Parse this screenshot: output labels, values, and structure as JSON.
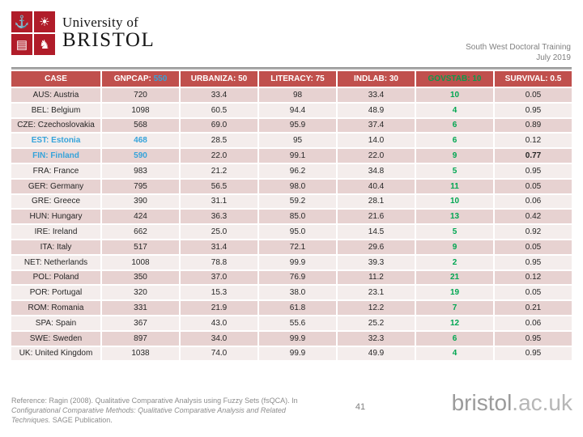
{
  "logo": {
    "line1": "University of",
    "line2": "BRISTOL",
    "crest_glyphs": {
      "ship": "⚓",
      "sun": "☀",
      "book": "▤",
      "horse": "♞"
    }
  },
  "header_right": {
    "line1": "South West Doctoral Training",
    "line2": "July 2019"
  },
  "table": {
    "columns": [
      {
        "key": "case",
        "label": "CASE"
      },
      {
        "key": "gnpcap",
        "label": "GNPCAP:",
        "threshold": "550"
      },
      {
        "key": "urbaniza",
        "label": "URBANIZA: 50"
      },
      {
        "key": "literacy",
        "label": "LITERACY: 75"
      },
      {
        "key": "indlab",
        "label": "INDLAB: 30"
      },
      {
        "key": "govstab",
        "label": "GOVSTAB: 10",
        "header_color": "green"
      },
      {
        "key": "survival",
        "label": "SURVIVAL: 0.5"
      }
    ],
    "rows": [
      {
        "case": "AUS: Austria",
        "gnpcap": "720",
        "urbaniza": "33.4",
        "literacy": "98",
        "indlab": "33.4",
        "govstab": "10",
        "survival": "0.05"
      },
      {
        "case": "BEL: Belgium",
        "gnpcap": "1098",
        "urbaniza": "60.5",
        "literacy": "94.4",
        "indlab": "48.9",
        "govstab": "4",
        "survival": "0.95"
      },
      {
        "case": "CZE: Czechoslovakia",
        "gnpcap": "568",
        "urbaniza": "69.0",
        "literacy": "95.9",
        "indlab": "37.4",
        "govstab": "6",
        "survival": "0.89"
      },
      {
        "case": "EST: Estonia",
        "gnpcap": "468",
        "urbaniza": "28.5",
        "literacy": "95",
        "indlab": "14.0",
        "govstab": "6",
        "survival": "0.12",
        "highlight": true
      },
      {
        "case": "FIN: Finland",
        "gnpcap": "590",
        "urbaniza": "22.0",
        "literacy": "99.1",
        "indlab": "22.0",
        "govstab": "9",
        "survival": "0.77",
        "highlight": true,
        "bold_survival": true
      },
      {
        "case": "FRA: France",
        "gnpcap": "983",
        "urbaniza": "21.2",
        "literacy": "96.2",
        "indlab": "34.8",
        "govstab": "5",
        "survival": "0.95"
      },
      {
        "case": "GER: Germany",
        "gnpcap": "795",
        "urbaniza": "56.5",
        "literacy": "98.0",
        "indlab": "40.4",
        "govstab": "11",
        "survival": "0.05"
      },
      {
        "case": "GRE: Greece",
        "gnpcap": "390",
        "urbaniza": "31.1",
        "literacy": "59.2",
        "indlab": "28.1",
        "govstab": "10",
        "survival": "0.06"
      },
      {
        "case": "HUN: Hungary",
        "gnpcap": "424",
        "urbaniza": "36.3",
        "literacy": "85.0",
        "indlab": "21.6",
        "govstab": "13",
        "survival": "0.42"
      },
      {
        "case": "IRE: Ireland",
        "gnpcap": "662",
        "urbaniza": "25.0",
        "literacy": "95.0",
        "indlab": "14.5",
        "govstab": "5",
        "survival": "0.92"
      },
      {
        "case": "ITA: Italy",
        "gnpcap": "517",
        "urbaniza": "31.4",
        "literacy": "72.1",
        "indlab": "29.6",
        "govstab": "9",
        "survival": "0.05"
      },
      {
        "case": "NET: Netherlands",
        "gnpcap": "1008",
        "urbaniza": "78.8",
        "literacy": "99.9",
        "indlab": "39.3",
        "govstab": "2",
        "survival": "0.95"
      },
      {
        "case": "POL: Poland",
        "gnpcap": "350",
        "urbaniza": "37.0",
        "literacy": "76.9",
        "indlab": "11.2",
        "govstab": "21",
        "survival": "0.12"
      },
      {
        "case": "POR: Portugal",
        "gnpcap": "320",
        "urbaniza": "15.3",
        "literacy": "38.0",
        "indlab": "23.1",
        "govstab": "19",
        "survival": "0.05"
      },
      {
        "case": "ROM: Romania",
        "gnpcap": "331",
        "urbaniza": "21.9",
        "literacy": "61.8",
        "indlab": "12.2",
        "govstab": "7",
        "survival": "0.21"
      },
      {
        "case": "SPA: Spain",
        "gnpcap": "367",
        "urbaniza": "43.0",
        "literacy": "55.6",
        "indlab": "25.2",
        "govstab": "12",
        "survival": "0.06"
      },
      {
        "case": "SWE: Sweden",
        "gnpcap": "897",
        "urbaniza": "34.0",
        "literacy": "99.9",
        "indlab": "32.3",
        "govstab": "6",
        "survival": "0.95"
      },
      {
        "case": "UK: United Kingdom",
        "gnpcap": "1038",
        "urbaniza": "74.0",
        "literacy": "99.9",
        "indlab": "49.9",
        "govstab": "4",
        "survival": "0.95"
      }
    ]
  },
  "footer": {
    "reference_prefix": "Reference: Ragin (2008). Qualitative Comparative Analysis using Fuzzy Sets (fsQCA). In ",
    "reference_italic": "Configurational Comparative Methods: Qualitative Comparative Analysis and Related Techniques.",
    "reference_suffix": " SAGE Publication.",
    "page_number": "41",
    "brand_main": "bristol",
    "brand_suffix": ".ac.uk"
  },
  "colors": {
    "header_bg": "#C0504D",
    "band_dark": "#E7D2D1",
    "band_light": "#F4EDEC",
    "threshold_blue": "#35A3DA",
    "govstab_green": "#00A651",
    "crest_red": "#B01C29"
  }
}
